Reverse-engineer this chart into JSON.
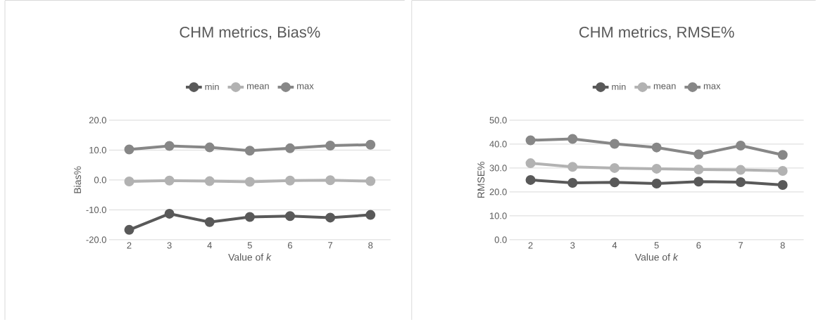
{
  "chart_data": [
    {
      "type": "line",
      "title": "CHM metrics, Bias%",
      "xlabel": "Value of *k*",
      "ylabel": "Bias%",
      "categories": [
        "2",
        "3",
        "4",
        "5",
        "6",
        "7",
        "8"
      ],
      "series": [
        {
          "name": "min",
          "color": "#595959",
          "values": [
            -16.7,
            -11.3,
            -14.1,
            -12.4,
            -12.1,
            -12.6,
            -11.7
          ]
        },
        {
          "name": "mean",
          "color": "#b2b2b2",
          "values": [
            -0.5,
            -0.2,
            -0.4,
            -0.6,
            -0.2,
            -0.1,
            -0.4
          ]
        },
        {
          "name": "max",
          "color": "#878787",
          "values": [
            10.2,
            11.4,
            10.9,
            9.8,
            10.6,
            11.5,
            11.8
          ]
        }
      ],
      "ylim": [
        -20,
        20
      ],
      "yticks": [
        {
          "value": -20,
          "label": "-20.0"
        },
        {
          "value": -10,
          "label": "-10.0"
        },
        {
          "value": 0,
          "label": "0.0"
        },
        {
          "value": 10,
          "label": "10.0"
        },
        {
          "value": 20,
          "label": "20.0"
        }
      ],
      "grid": "y",
      "legend": "top",
      "marker": "circle",
      "line_style": "solid"
    },
    {
      "type": "line",
      "title": "CHM metrics, RMSE%",
      "xlabel": "Value of *k*",
      "ylabel": "RMSE%",
      "categories": [
        "2",
        "3",
        "4",
        "5",
        "6",
        "7",
        "8"
      ],
      "series": [
        {
          "name": "min",
          "color": "#595959",
          "values": [
            25.0,
            23.8,
            24.0,
            23.5,
            24.3,
            24.1,
            22.9
          ]
        },
        {
          "name": "mean",
          "color": "#b2b2b2",
          "values": [
            32.0,
            30.5,
            30.0,
            29.7,
            29.4,
            29.2,
            28.8
          ]
        },
        {
          "name": "max",
          "color": "#878787",
          "values": [
            41.6,
            42.2,
            40.1,
            38.6,
            35.7,
            39.4,
            35.5
          ]
        }
      ],
      "ylim": [
        0,
        50
      ],
      "yticks": [
        {
          "value": 0,
          "label": "0.0"
        },
        {
          "value": 10,
          "label": "10.0"
        },
        {
          "value": 20,
          "label": "20.0"
        },
        {
          "value": 30,
          "label": "30.0"
        },
        {
          "value": 40,
          "label": "40.0"
        },
        {
          "value": 50,
          "label": "50.0"
        }
      ],
      "grid": "y",
      "legend": "top",
      "marker": "circle",
      "line_style": "solid"
    }
  ]
}
